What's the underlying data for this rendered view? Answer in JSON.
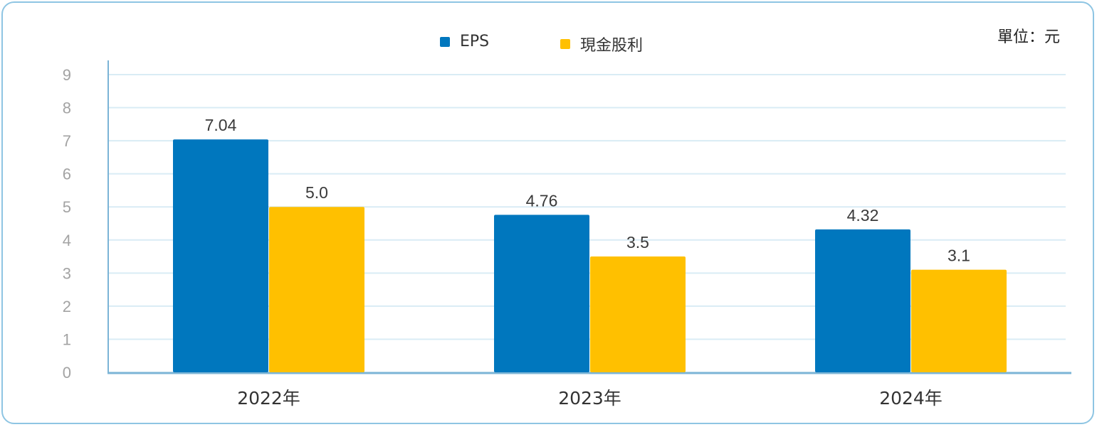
{
  "unit_label": "單位：元",
  "colors": {
    "eps": "#0077be",
    "dividend": "#ffc000",
    "grid": "#d9ecf5",
    "axis": "#7bb4d6",
    "frame": "#8ec5e3"
  },
  "chart_data": {
    "type": "bar",
    "categories": [
      "2022年",
      "2023年",
      "2024年"
    ],
    "series": [
      {
        "name": "EPS",
        "values": [
          7.04,
          4.76,
          4.32
        ],
        "labels": [
          "7.04",
          "4.76",
          "4.32"
        ]
      },
      {
        "name": "現金股利",
        "values": [
          5.0,
          3.5,
          3.1
        ],
        "labels": [
          "5.0",
          "3.5",
          "3.1"
        ]
      }
    ],
    "ylim": [
      0,
      9
    ],
    "yticks": [
      "0",
      "1",
      "2",
      "3",
      "4",
      "5",
      "6",
      "7",
      "8",
      "9"
    ],
    "grid": true,
    "legend": "top-center"
  }
}
